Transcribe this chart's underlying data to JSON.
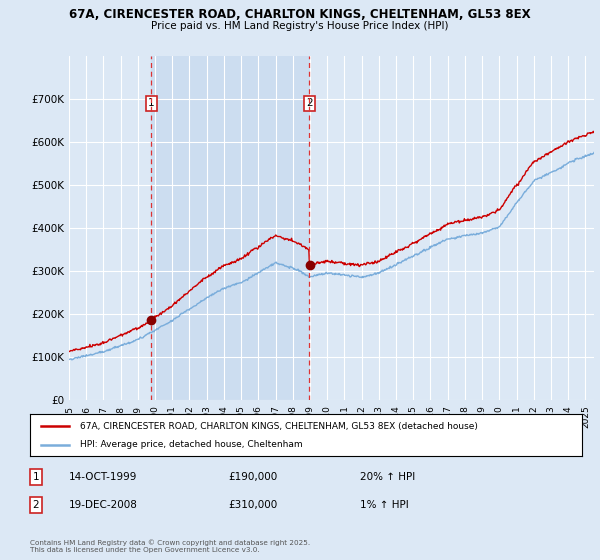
{
  "title1": "67A, CIRENCESTER ROAD, CHARLTON KINGS, CHELTENHAM, GL53 8EX",
  "title2": "Price paid vs. HM Land Registry's House Price Index (HPI)",
  "legend_label1": "67A, CIRENCESTER ROAD, CHARLTON KINGS, CHELTENHAM, GL53 8EX (detached house)",
  "legend_label2": "HPI: Average price, detached house, Cheltenham",
  "sale1_date": "14-OCT-1999",
  "sale1_price": "£190,000",
  "sale1_hpi": "20% ↑ HPI",
  "sale1_year": 1999.79,
  "sale1_value": 190000,
  "sale2_date": "19-DEC-2008",
  "sale2_price": "£310,000",
  "sale2_hpi": "1% ↑ HPI",
  "sale2_year": 2008.97,
  "sale2_value": 310000,
  "ylim": [
    0,
    800000
  ],
  "yticks": [
    0,
    100000,
    200000,
    300000,
    400000,
    500000,
    600000,
    700000
  ],
  "bg_color": "#dce8f5",
  "shading_color": "#ccddf0",
  "grid_color": "#ffffff",
  "line_color_red": "#cc0000",
  "line_color_blue": "#7aaddb",
  "vline_color": "#dd3333",
  "dot_color": "#880000",
  "footer": "Contains HM Land Registry data © Crown copyright and database right 2025.\nThis data is licensed under the Open Government Licence v3.0."
}
